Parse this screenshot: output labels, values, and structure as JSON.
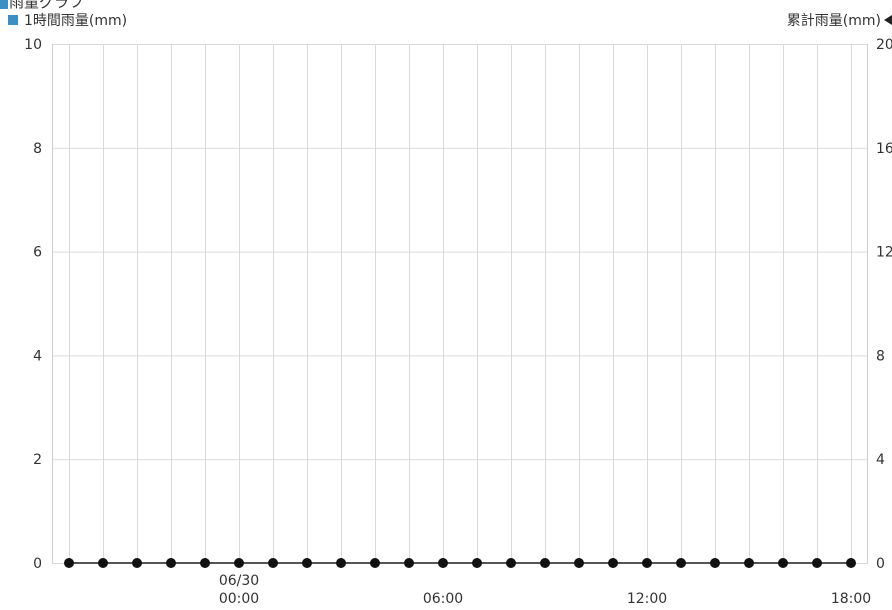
{
  "title": "雨量グラフ",
  "legend": {
    "left_label": "1時間雨量(mm)",
    "left_color": "#3b8fc4",
    "right_label": "累計雨量(mm)",
    "right_icon": "left-triangle-marker"
  },
  "chart_data": {
    "type": "line",
    "title": "雨量グラフ",
    "x": [
      "06/29 19:00",
      "06/29 20:00",
      "06/29 21:00",
      "06/29 22:00",
      "06/29 23:00",
      "06/30 00:00",
      "06/30 01:00",
      "06/30 02:00",
      "06/30 03:00",
      "06/30 04:00",
      "06/30 05:00",
      "06/30 06:00",
      "06/30 07:00",
      "06/30 08:00",
      "06/30 09:00",
      "06/30 10:00",
      "06/30 11:00",
      "06/30 12:00",
      "06/30 13:00",
      "06/30 14:00",
      "06/30 15:00",
      "06/30 16:00",
      "06/30 17:00",
      "06/30 18:00"
    ],
    "x_tick_labels": [
      {
        "at": "06/30 00:00",
        "lines": [
          "06/30",
          "00:00"
        ]
      },
      {
        "at": "06/30 06:00",
        "lines": [
          "06:00"
        ]
      },
      {
        "at": "06/30 12:00",
        "lines": [
          "12:00"
        ]
      },
      {
        "at": "06/30 18:00",
        "lines": [
          "18:00"
        ]
      }
    ],
    "series": [
      {
        "name": "1時間雨量(mm)",
        "axis": "left",
        "color": "#3b8fc4",
        "values": [
          0,
          0,
          0,
          0,
          0,
          0,
          0,
          0,
          0,
          0,
          0,
          0,
          0,
          0,
          0,
          0,
          0,
          0,
          0,
          0,
          0,
          0,
          0,
          0
        ]
      },
      {
        "name": "累計雨量(mm)",
        "axis": "right",
        "color": "#111111",
        "values": [
          0,
          0,
          0,
          0,
          0,
          0,
          0,
          0,
          0,
          0,
          0,
          0,
          0,
          0,
          0,
          0,
          0,
          0,
          0,
          0,
          0,
          0,
          0,
          0
        ]
      }
    ],
    "y_left": {
      "ylim": [
        0,
        10
      ],
      "ticks": [
        0,
        2,
        4,
        6,
        8,
        10
      ]
    },
    "y_right": {
      "ylim": [
        0,
        20
      ],
      "ticks": [
        0,
        4,
        8,
        12,
        16,
        20
      ]
    },
    "grid": true
  }
}
